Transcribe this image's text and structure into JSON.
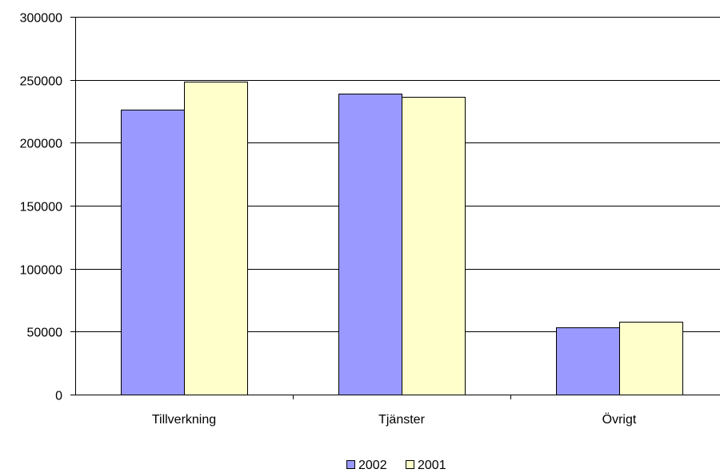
{
  "chart_data": {
    "type": "bar",
    "title": "",
    "xlabel": "",
    "ylabel": "",
    "categories": [
      "Tillverkning",
      "Tjänster",
      "Övrigt"
    ],
    "series": [
      {
        "name": "2002",
        "values": [
          226000,
          239000,
          53500
        ],
        "color": "#9999ff"
      },
      {
        "name": "2001",
        "values": [
          248500,
          236500,
          58000
        ],
        "color": "#ffffcc"
      }
    ],
    "ylim": [
      0,
      300000
    ],
    "yticks": [
      0,
      50000,
      100000,
      150000,
      200000,
      250000,
      300000
    ],
    "grid": true,
    "legend_position": "bottom"
  }
}
